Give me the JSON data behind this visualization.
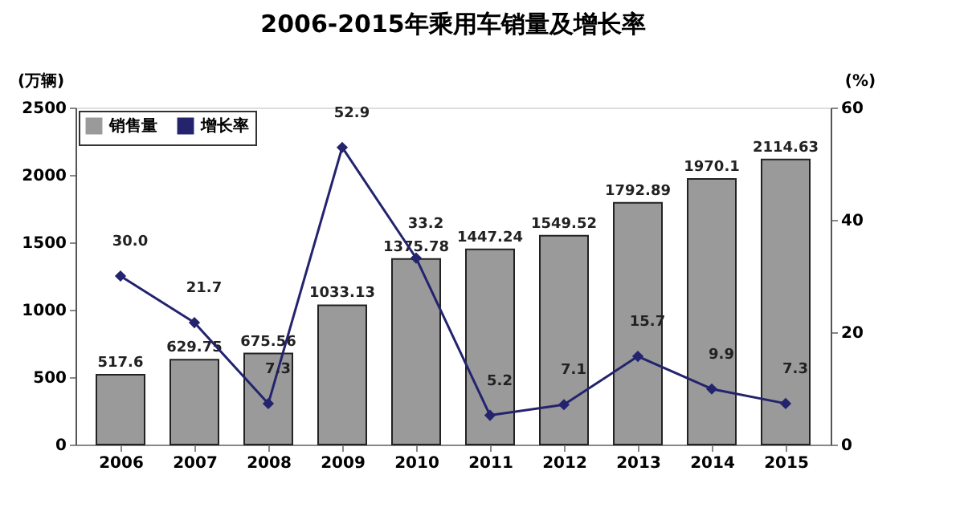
{
  "chart_data": {
    "type": "bar",
    "title": "2006-2015年乘用车销量及增长率",
    "ylabel": "(万辆)",
    "y2label": "(%)",
    "categories": [
      "2006",
      "2007",
      "2008",
      "2009",
      "2010",
      "2011",
      "2012",
      "2013",
      "2014",
      "2015"
    ],
    "series": [
      {
        "name": "销售量",
        "color": "#9a9a9a",
        "values": [
          517.6,
          629.75,
          675.56,
          1033.13,
          1375.78,
          1447.24,
          1549.52,
          1792.89,
          1970.1,
          2114.63
        ]
      },
      {
        "name": "增长率",
        "type": "line",
        "axis": "y2",
        "color": "#23236e",
        "values": [
          30.0,
          21.7,
          7.3,
          52.9,
          33.2,
          5.2,
          7.1,
          15.7,
          9.9,
          7.3
        ],
        "value_labels": [
          "30.0",
          "21.7",
          "7.3",
          "52.9",
          "33.2",
          "5.2",
          "7.1",
          "15.7",
          "9.9",
          "7.3"
        ]
      }
    ],
    "ylim": [
      0,
      2500
    ],
    "yticks": [
      0,
      500,
      1000,
      1500,
      2000,
      2500
    ],
    "y2lim": [
      0,
      60
    ],
    "y2ticks": [
      0,
      20,
      40,
      60
    ],
    "data_labels": true,
    "grid": false,
    "legend": "top left",
    "marker": "diamond",
    "line_style": "solid"
  }
}
